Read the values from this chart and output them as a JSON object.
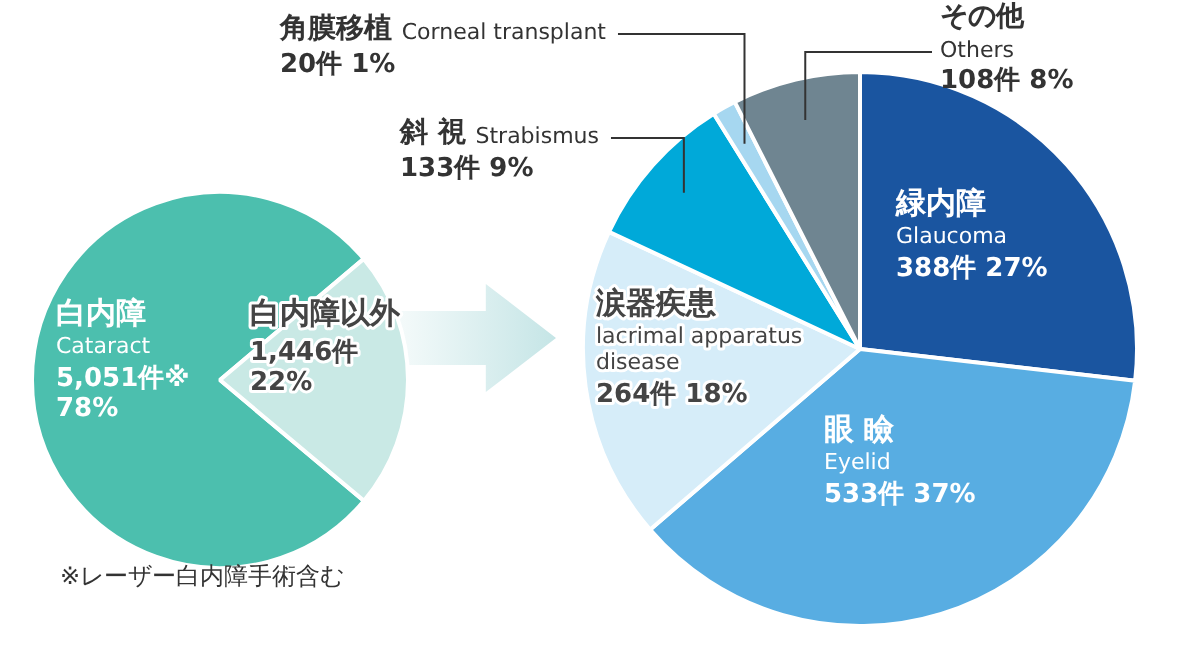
{
  "chart_data": [
    {
      "type": "pie",
      "categories": [
        "白内障\nCataract",
        "白内障以外"
      ],
      "values": [
        5051,
        1446
      ],
      "colors": [
        "#4cbfae",
        "#c9e9e5"
      ],
      "value_labels": [
        "5,051件※\n78%",
        "1,446件\n22%"
      ],
      "annotations": [
        "※レーザー白内障手術含む"
      ]
    },
    {
      "type": "pie",
      "categories": [
        "緑内障\nGlaucoma",
        "眼 瞼\nEyelid",
        "涙器疾患\nlacrimal apparatus\ndisease",
        "斜 視\nStrabismus",
        "角膜移植\nCorneal transplant",
        "その他\nOthers"
      ],
      "values": [
        388,
        533,
        264,
        133,
        20,
        108
      ],
      "colors": [
        "#1a55a0",
        "#58ade2",
        "#d6edf9",
        "#00a9d9",
        "#a6d7f0",
        "#6f8591"
      ],
      "value_labels": [
        "388件 27%",
        "533件 37%",
        "264件 18%",
        "133件 9%",
        "20件 1%",
        "108件 8%"
      ]
    }
  ]
}
